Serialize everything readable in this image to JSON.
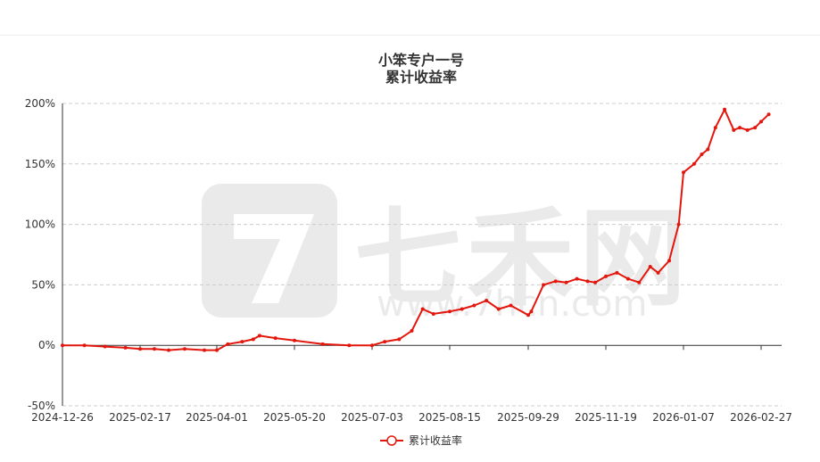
{
  "title": "小笨专户一号",
  "subtitle": "累计收益率",
  "watermark": {
    "text": "七禾网",
    "sub": "www.7hcn.com"
  },
  "colors": {
    "series": "#e3170d",
    "grid": "#cccccc",
    "axis": "#333333"
  },
  "legend": {
    "position": "bottom",
    "label": "累计收益率"
  },
  "chart_data": {
    "type": "line",
    "title": "小笨专户一号",
    "subtitle": "累计收益率",
    "ylabel": "",
    "xlabel": "",
    "ylim": [
      -50,
      200
    ],
    "yticks": [
      -50,
      0,
      50,
      100,
      150,
      200
    ],
    "ytick_labels": [
      "-50%",
      "0%",
      "50%",
      "100%",
      "150%",
      "200%"
    ],
    "xticks": [
      "2024-12-26",
      "2025-02-17",
      "2025-04-01",
      "2025-05-20",
      "2025-07-03",
      "2025-08-15",
      "2025-09-29",
      "2025-11-19",
      "2026-01-07",
      "2026-02-27"
    ],
    "grid": true,
    "series": [
      {
        "name": "累计收益率",
        "color": "#e3170d",
        "x": [
          "2024-12-26",
          "2025-01-10",
          "2025-01-24",
          "2025-02-07",
          "2025-02-17",
          "2025-02-25",
          "2025-03-05",
          "2025-03-14",
          "2025-03-25",
          "2025-04-01",
          "2025-04-08",
          "2025-04-17",
          "2025-04-24",
          "2025-04-28",
          "2025-05-08",
          "2025-05-20",
          "2025-06-05",
          "2025-06-20",
          "2025-07-03",
          "2025-07-10",
          "2025-07-18",
          "2025-07-25",
          "2025-07-31",
          "2025-08-06",
          "2025-08-15",
          "2025-08-22",
          "2025-08-29",
          "2025-09-05",
          "2025-09-12",
          "2025-09-19",
          "2025-09-29",
          "2025-10-01",
          "2025-10-09",
          "2025-10-17",
          "2025-10-24",
          "2025-10-31",
          "2025-11-07",
          "2025-11-12",
          "2025-11-19",
          "2025-11-26",
          "2025-12-03",
          "2025-12-10",
          "2025-12-17",
          "2025-12-22",
          "2025-12-29",
          "2026-01-04",
          "2026-01-07",
          "2026-01-14",
          "2026-01-19",
          "2026-01-23",
          "2026-01-28",
          "2026-02-03",
          "2026-02-09",
          "2026-02-13",
          "2026-02-18",
          "2026-02-23",
          "2026-02-27",
          "2026-03-04"
        ],
        "values": [
          0,
          0,
          -1,
          -2,
          -3,
          -3,
          -4,
          -3,
          -4,
          -4,
          1,
          3,
          5,
          8,
          6,
          4,
          1,
          0,
          0,
          3,
          5,
          12,
          30,
          26,
          28,
          30,
          33,
          37,
          30,
          33,
          25,
          28,
          50,
          53,
          52,
          55,
          53,
          52,
          57,
          60,
          55,
          52,
          65,
          60,
          70,
          100,
          143,
          150,
          158,
          162,
          180,
          195,
          178,
          180,
          178,
          180,
          185,
          191
        ]
      }
    ]
  }
}
